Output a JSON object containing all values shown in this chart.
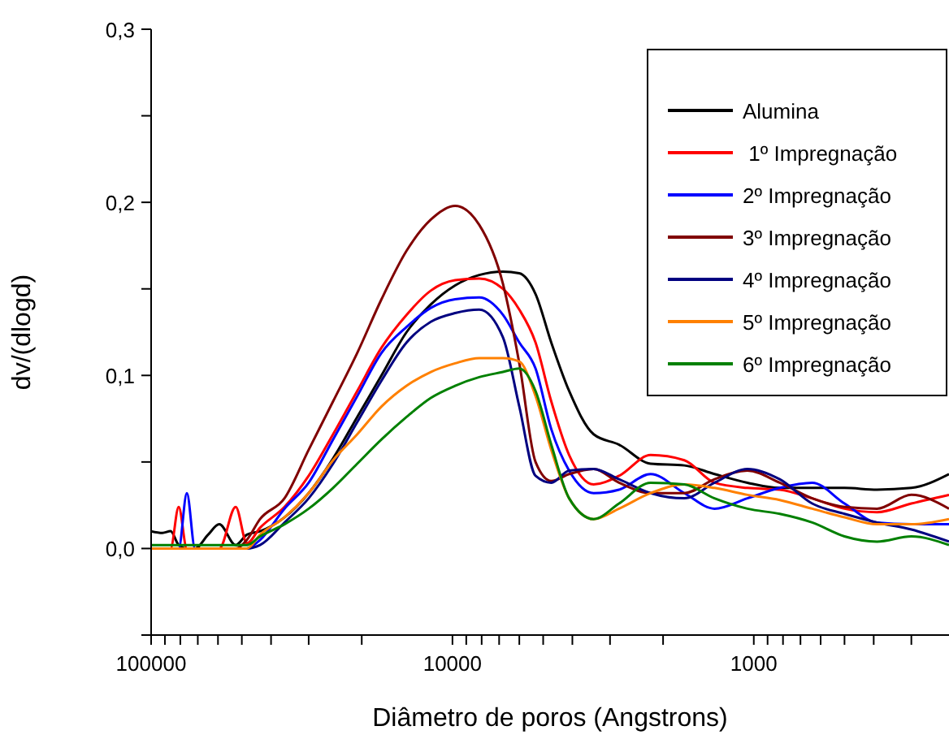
{
  "chart_data": {
    "type": "line",
    "xlabel": "Diâmetro de poros (Angstrons)",
    "ylabel": "dv/(dlogd)",
    "log": "x",
    "xlim": [
      100000,
      225
    ],
    "xticks": [
      100000,
      {
        "value": 90000,
        "label": null
      },
      {
        "value": 80000,
        "label": null
      },
      {
        "value": 70000,
        "label": null
      },
      {
        "value": 60000,
        "label": null
      },
      {
        "value": 50000,
        "label": null
      },
      {
        "value": 40000,
        "label": null
      },
      {
        "value": 30000,
        "label": null
      },
      {
        "value": 20000,
        "label": null
      },
      10000,
      {
        "value": 9000,
        "label": null
      },
      {
        "value": 8000,
        "label": null
      },
      {
        "value": 7000,
        "label": null
      },
      {
        "value": 6000,
        "label": null
      },
      {
        "value": 5000,
        "label": null
      },
      {
        "value": 4000,
        "label": null
      },
      {
        "value": 3000,
        "label": null
      },
      {
        "value": 2000,
        "label": null
      },
      1000,
      {
        "value": 900,
        "label": null
      },
      {
        "value": 800,
        "label": null
      },
      {
        "value": 700,
        "label": null
      },
      {
        "value": 600,
        "label": null
      },
      {
        "value": 500,
        "label": null
      },
      {
        "value": 400,
        "label": null
      },
      {
        "value": 300,
        "label": null
      }
    ],
    "ylim": [
      -0.05,
      0.3
    ],
    "yticks": [
      {
        "value": -0.05,
        "label": null
      },
      {
        "value": 0,
        "label": "0,0"
      },
      {
        "value": 0.05,
        "label": null
      },
      {
        "value": 0.1,
        "label": "0,1"
      },
      {
        "value": 0.15,
        "label": null
      },
      {
        "value": 0.2,
        "label": "0,2"
      },
      {
        "value": 0.25,
        "label": null
      },
      {
        "value": 0.3,
        "label": "0,3"
      }
    ],
    "grid": false,
    "legend": "top right",
    "marker": "none",
    "line_style": "solid",
    "x": [
      100000,
      91700,
      86200,
      81000,
      76100,
      71500,
      64700,
      59400,
      52400,
      48100,
      43500,
      36100,
      30000,
      24900,
      20700,
      17200,
      14200,
      11800,
      9800,
      8150,
      6800,
      6000,
      5300,
      4700,
      4100,
      3400,
      2800,
      2200,
      1700,
      1350,
      1050,
      820,
      640,
      500,
      390,
      300,
      225
    ],
    "series": [
      {
        "name": "Alumina",
        "color": "#000000",
        "values": [
          0.01,
          0.009,
          0.01,
          0.002,
          0,
          0,
          0.008,
          0.014,
          0.002,
          0.008,
          0.01,
          0.018,
          0.032,
          0.052,
          0.076,
          0.1,
          0.125,
          0.141,
          0.152,
          0.158,
          0.16,
          0.159,
          0.147,
          0.119,
          0.091,
          0.066,
          0.06,
          0.049,
          0.048,
          0.043,
          0.038,
          0.035,
          0.035,
          0.035,
          0.034,
          0.035,
          0.043
        ]
      },
      {
        "name": " 1º Impregnação",
        "color": "#ff0000",
        "values": [
          0,
          0,
          0,
          0.024,
          0,
          0,
          0,
          0,
          0.024,
          0.003,
          0.012,
          0.024,
          0.042,
          0.066,
          0.091,
          0.116,
          0.135,
          0.149,
          0.155,
          0.156,
          0.15,
          0.138,
          0.119,
          0.085,
          0.054,
          0.037,
          0.042,
          0.054,
          0.051,
          0.038,
          0.035,
          0.034,
          0.029,
          0.023,
          0.021,
          0.026,
          0.031
        ]
      },
      {
        "name": "2º Impregnação",
        "color": "#0000ff",
        "values": [
          null,
          null,
          0,
          0,
          0.032,
          0,
          0,
          0,
          0,
          0,
          0.005,
          0.023,
          0.038,
          0.063,
          0.088,
          0.113,
          0.128,
          0.139,
          0.144,
          0.145,
          0.135,
          0.119,
          0.104,
          0.069,
          0.045,
          0.032,
          0.034,
          0.043,
          0.032,
          0.023,
          0.029,
          0.035,
          0.038,
          0.026,
          0.015,
          0.014,
          0.014
        ]
      },
      {
        "name": "3º Impregnação",
        "color": "#800000",
        "values": [
          null,
          null,
          null,
          null,
          null,
          null,
          null,
          0,
          0,
          0.005,
          0.017,
          0.029,
          0.057,
          0.085,
          0.113,
          0.144,
          0.172,
          0.19,
          0.198,
          0.187,
          0.153,
          0.107,
          0.05,
          0.039,
          0.043,
          0.046,
          0.038,
          0.032,
          0.032,
          0.04,
          0.045,
          0.038,
          0.029,
          0.024,
          0.023,
          0.031,
          0.023
        ]
      },
      {
        "name": "4º Impregnação",
        "color": "#000080",
        "values": [
          null,
          null,
          null,
          null,
          null,
          null,
          null,
          null,
          0,
          0,
          0.002,
          0.015,
          0.029,
          0.049,
          0.073,
          0.097,
          0.119,
          0.131,
          0.136,
          0.138,
          0.122,
          0.082,
          0.042,
          0.038,
          0.045,
          0.046,
          0.04,
          0.032,
          0.029,
          0.038,
          0.046,
          0.04,
          0.026,
          0.02,
          0.015,
          0.011,
          0.004
        ]
      },
      {
        "name": "5º Impregnação",
        "color": "#ff8000",
        "values": [
          0,
          0,
          0,
          0,
          0,
          0,
          0,
          0,
          0,
          0,
          0.008,
          0.018,
          0.032,
          0.051,
          0.066,
          0.082,
          0.094,
          0.102,
          0.107,
          0.11,
          0.11,
          0.108,
          0.088,
          0.057,
          0.029,
          0.017,
          0.023,
          0.032,
          0.037,
          0.035,
          0.031,
          0.028,
          0.023,
          0.018,
          0.014,
          0.014,
          0.017
        ]
      },
      {
        "name": "6º Impregnação",
        "color": "#008000",
        "values": [
          0.002,
          0.002,
          0.002,
          0.002,
          0.002,
          0.002,
          0.002,
          0.002,
          0.002,
          0.002,
          0.007,
          0.014,
          0.023,
          0.035,
          0.049,
          0.063,
          0.076,
          0.087,
          0.094,
          0.099,
          0.102,
          0.104,
          0.091,
          0.06,
          0.029,
          0.017,
          0.026,
          0.038,
          0.037,
          0.029,
          0.023,
          0.02,
          0.015,
          0.007,
          0.004,
          0.007,
          0.002
        ]
      }
    ]
  }
}
